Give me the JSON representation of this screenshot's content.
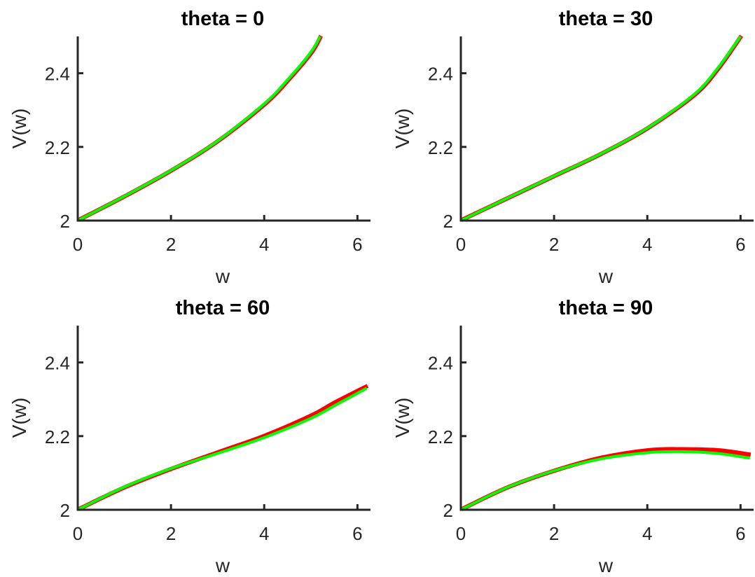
{
  "colors": {
    "red_series": "#ff0000",
    "green_series": "#00ff00",
    "axis": "#262626",
    "title": "#000000"
  },
  "chart_data": [
    {
      "type": "line",
      "title": "theta = 0",
      "xlabel": "w",
      "ylabel": "V(w)",
      "xlim": [
        0,
        6.28
      ],
      "ylim": [
        2,
        2.5
      ],
      "xticks": [
        0,
        2,
        4,
        6
      ],
      "yticks": [
        2,
        2.2,
        2.4
      ],
      "xtick_labels": [
        "0",
        "2",
        "4",
        "6"
      ],
      "ytick_labels": [
        "2",
        "2.2",
        "2.4"
      ],
      "series": [
        {
          "color": "#ff0000",
          "x": [
            0,
            1,
            2,
            3,
            4,
            4.5,
            5,
            5.2
          ],
          "y": [
            2.0,
            2.065,
            2.135,
            2.215,
            2.315,
            2.38,
            2.455,
            2.5
          ]
        },
        {
          "color": "#00ff00",
          "x": [
            0,
            1,
            2,
            3,
            4,
            4.5,
            5,
            5.2
          ],
          "y": [
            2.0,
            2.066,
            2.136,
            2.216,
            2.317,
            2.382,
            2.457,
            2.5
          ]
        }
      ]
    },
    {
      "type": "line",
      "title": "theta = 30",
      "xlabel": "w",
      "ylabel": "V(w)",
      "xlim": [
        0,
        6.28
      ],
      "ylim": [
        2,
        2.5
      ],
      "xticks": [
        0,
        2,
        4,
        6
      ],
      "yticks": [
        2,
        2.2,
        2.4
      ],
      "xtick_labels": [
        "0",
        "2",
        "4",
        "6"
      ],
      "ytick_labels": [
        "2",
        "2.2",
        "2.4"
      ],
      "series": [
        {
          "color": "#ff0000",
          "x": [
            0,
            1,
            2,
            3,
            4,
            5,
            5.5,
            6
          ],
          "y": [
            2.0,
            2.06,
            2.12,
            2.18,
            2.25,
            2.34,
            2.41,
            2.5
          ]
        },
        {
          "color": "#00ff00",
          "x": [
            0,
            1,
            2,
            3,
            4,
            5,
            5.5,
            6
          ],
          "y": [
            2.0,
            2.061,
            2.121,
            2.181,
            2.251,
            2.342,
            2.412,
            2.5
          ]
        }
      ]
    },
    {
      "type": "line",
      "title": "theta = 60",
      "xlabel": "w",
      "ylabel": "V(w)",
      "xlim": [
        0,
        6.28
      ],
      "ylim": [
        2,
        2.5
      ],
      "xticks": [
        0,
        2,
        4,
        6
      ],
      "yticks": [
        2,
        2.2,
        2.4
      ],
      "xtick_labels": [
        "0",
        "2",
        "4",
        "6"
      ],
      "ytick_labels": [
        "2",
        "2.2",
        "2.4"
      ],
      "series": [
        {
          "color": "#ff0000",
          "x": [
            0,
            1,
            2,
            3,
            4,
            5,
            5.5,
            6.2
          ],
          "y": [
            2.0,
            2.06,
            2.11,
            2.155,
            2.2,
            2.255,
            2.29,
            2.335
          ]
        },
        {
          "color": "#00ff00",
          "x": [
            0,
            1,
            2,
            3,
            4,
            5,
            5.5,
            6.2
          ],
          "y": [
            2.0,
            2.062,
            2.112,
            2.153,
            2.196,
            2.248,
            2.282,
            2.33
          ]
        }
      ]
    },
    {
      "type": "line",
      "title": "theta = 90",
      "xlabel": "w",
      "ylabel": "V(w)",
      "xlim": [
        0,
        6.28
      ],
      "ylim": [
        2,
        2.5
      ],
      "xticks": [
        0,
        2,
        4,
        6
      ],
      "yticks": [
        2,
        2.2,
        2.4
      ],
      "xtick_labels": [
        "0",
        "2",
        "4",
        "6"
      ],
      "ytick_labels": [
        "2",
        "2.2",
        "2.4"
      ],
      "series": [
        {
          "color": "#ff0000",
          "x": [
            0,
            1,
            2,
            3,
            4,
            4.7,
            5.5,
            6.2
          ],
          "y": [
            2.0,
            2.06,
            2.105,
            2.14,
            2.16,
            2.163,
            2.16,
            2.148
          ]
        },
        {
          "color": "#00ff00",
          "x": [
            0,
            1,
            2,
            3,
            4,
            4.7,
            5.5,
            6.2
          ],
          "y": [
            2.0,
            2.061,
            2.106,
            2.138,
            2.155,
            2.158,
            2.153,
            2.14
          ]
        }
      ]
    }
  ]
}
